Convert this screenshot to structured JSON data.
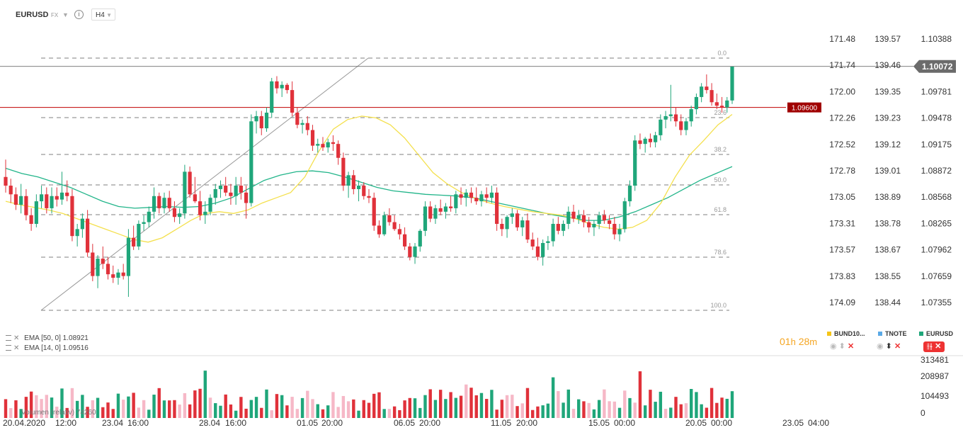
{
  "header": {
    "symbol": "EURUSD",
    "market": "FX",
    "timeframe": "H4"
  },
  "colors": {
    "up": "#1fa67a",
    "down": "#e0313a",
    "ema14": "#f4e04d",
    "ema50": "#22b58a",
    "current_price_bg": "#6b6b6b",
    "alert_line": "#c00000",
    "volume_light": "#f6b8c7"
  },
  "price_axis": {
    "col3": [
      "1.10388",
      "1.10072",
      "1.09781",
      "1.09478",
      "1.09175",
      "1.08872",
      "1.08568",
      "1.08265",
      "1.07962",
      "1.07659",
      "1.07355"
    ],
    "col2": [
      "139.57",
      "139.46",
      "139.35",
      "139.23",
      "139.12",
      "139.01",
      "138.89",
      "138.78",
      "138.67",
      "138.55",
      "138.44"
    ],
    "col1": [
      "171.48",
      "171.74",
      "172.00",
      "172.26",
      "172.52",
      "172.78",
      "173.05",
      "173.31",
      "173.57",
      "173.83",
      "174.09"
    ]
  },
  "current_price": "1.10072",
  "alert_price": "1.09600",
  "fib_levels": [
    "0.0",
    "23.6",
    "38.2",
    "50.0",
    "61.8",
    "78.6",
    "100.0"
  ],
  "indicators": [
    {
      "name": "EMA",
      "params": "[50, 0]",
      "value": "1.08921"
    },
    {
      "name": "EMA",
      "params": "[14, 0]",
      "value": "1.09516"
    }
  ],
  "timer": {
    "hours": "01",
    "h_unit": "h",
    "minutes": "28",
    "m_unit": "m"
  },
  "legend": [
    {
      "label": "BUND10...",
      "color": "#f5c518"
    },
    {
      "label": "TNOTE",
      "color": "#5aa9e6"
    },
    {
      "label": "EURUSD",
      "color": "#1fa67a"
    }
  ],
  "volume": {
    "label": "Volumen",
    "mode": "(relativ)",
    "value": "74260",
    "axis": [
      "313481",
      "208987",
      "104493",
      "0"
    ]
  },
  "time_axis": [
    "20.04.2020",
    "12:00",
    "23.04",
    "16:00",
    "28.04",
    "16:00",
    "01.05",
    "20:00",
    "06.05",
    "20:00",
    "11.05",
    "20:00",
    "15.05",
    "00:00",
    "20.05",
    "00:00",
    "23.05",
    "04:00"
  ],
  "chart_data": {
    "type": "candlestick",
    "symbol": "EURUSD",
    "timeframe": "H4",
    "y_axes": [
      "BUND10",
      "TNOTE",
      "EURUSD"
    ],
    "ylim": [
      1.07355,
      1.10388
    ],
    "series": [
      {
        "name": "EURUSD",
        "candles": [
          [
            1.088,
            1.09,
            1.0862,
            1.087
          ],
          [
            1.087,
            1.0878,
            1.085,
            1.086
          ],
          [
            1.086,
            1.0868,
            1.0842,
            1.0848
          ],
          [
            1.0848,
            1.0872,
            1.0838,
            1.0858
          ],
          [
            1.0858,
            1.0866,
            1.083,
            1.0836
          ],
          [
            1.0836,
            1.0844,
            1.0818,
            1.0826
          ],
          [
            1.0826,
            1.086,
            1.0822,
            1.0852
          ],
          [
            1.0852,
            1.087,
            1.0844,
            1.086
          ],
          [
            1.086,
            1.0868,
            1.0838,
            1.0844
          ],
          [
            1.0844,
            1.0868,
            1.0838,
            1.0858
          ],
          [
            1.0858,
            1.0868,
            1.0846,
            1.0854
          ],
          [
            1.0854,
            1.0886,
            1.0848,
            1.0862
          ],
          [
            1.0862,
            1.0876,
            1.0852,
            1.0858
          ],
          [
            1.0858,
            1.0866,
            1.0806,
            1.0812
          ],
          [
            1.0812,
            1.0826,
            1.08,
            1.082
          ],
          [
            1.082,
            1.0838,
            1.081,
            1.0832
          ],
          [
            1.0832,
            1.0842,
            1.0788,
            1.0793
          ],
          [
            1.0793,
            1.0803,
            1.076,
            1.0766
          ],
          [
            1.0766,
            1.079,
            1.0752,
            1.0786
          ],
          [
            1.0786,
            1.08,
            1.0774,
            1.078
          ],
          [
            1.078,
            1.0788,
            1.0762,
            1.0768
          ],
          [
            1.0768,
            1.0778,
            1.0758,
            1.0764
          ],
          [
            1.0764,
            1.0774,
            1.0756,
            1.077
          ],
          [
            1.077,
            1.078,
            1.0762,
            1.0766
          ],
          [
            1.0766,
            1.082,
            1.0742,
            1.081
          ],
          [
            1.081,
            1.0824,
            1.0796,
            1.08
          ],
          [
            1.08,
            1.083,
            1.0796,
            1.0826
          ],
          [
            1.0826,
            1.0836,
            1.0818,
            1.0828
          ],
          [
            1.0828,
            1.0846,
            1.0822,
            1.084
          ],
          [
            1.084,
            1.0868,
            1.0832,
            1.0858
          ],
          [
            1.0858,
            1.0862,
            1.0838,
            1.0844
          ],
          [
            1.0844,
            1.0862,
            1.0838,
            1.0856
          ],
          [
            1.0856,
            1.0864,
            1.084,
            1.0844
          ],
          [
            1.0844,
            1.0852,
            1.0828,
            1.0834
          ],
          [
            1.0834,
            1.0844,
            1.0826,
            1.0838
          ],
          [
            1.0838,
            1.0894,
            1.0832,
            1.0886
          ],
          [
            1.0886,
            1.0892,
            1.0856,
            1.086
          ],
          [
            1.086,
            1.088,
            1.085,
            1.0852
          ],
          [
            1.0852,
            1.0864,
            1.083,
            1.0836
          ],
          [
            1.0836,
            1.0852,
            1.0826,
            1.084
          ],
          [
            1.084,
            1.086,
            1.0836,
            1.0856
          ],
          [
            1.0856,
            1.0872,
            1.0848,
            1.0866
          ],
          [
            1.0866,
            1.0876,
            1.0856,
            1.087
          ],
          [
            1.087,
            1.088,
            1.0858,
            1.0862
          ],
          [
            1.0862,
            1.0872,
            1.0848,
            1.0858
          ],
          [
            1.0858,
            1.088,
            1.0848,
            1.087
          ],
          [
            1.087,
            1.088,
            1.0854,
            1.0862
          ],
          [
            1.0862,
            1.087,
            1.0832,
            1.085
          ],
          [
            1.085,
            1.0952,
            1.0846,
            1.0944
          ],
          [
            1.0944,
            1.0956,
            1.093,
            1.095
          ],
          [
            1.095,
            1.0956,
            1.0928,
            1.0936
          ],
          [
            1.0936,
            1.096,
            1.0932,
            1.0954
          ],
          [
            1.0954,
            1.0994,
            1.0948,
            1.099
          ],
          [
            1.099,
            1.0996,
            1.0976,
            1.0982
          ],
          [
            1.0982,
            1.099,
            1.0972,
            1.0986
          ],
          [
            1.0986,
            1.0988,
            1.0976,
            1.098
          ],
          [
            1.098,
            1.099,
            1.095,
            1.0954
          ],
          [
            1.0954,
            1.096,
            1.0936,
            1.094
          ],
          [
            1.094,
            1.0946,
            1.093,
            1.0942
          ],
          [
            1.0942,
            1.095,
            1.0928,
            1.0934
          ],
          [
            1.0934,
            1.094,
            1.091,
            1.0916
          ],
          [
            1.0916,
            1.0924,
            1.0908,
            1.0918
          ],
          [
            1.0918,
            1.0926,
            1.091,
            1.0914
          ],
          [
            1.0914,
            1.0924,
            1.0908,
            1.092
          ],
          [
            1.092,
            1.0928,
            1.091,
            1.0918
          ],
          [
            1.0918,
            1.0922,
            1.0894,
            1.0902
          ],
          [
            1.0902,
            1.0908,
            1.0864,
            1.087
          ],
          [
            1.087,
            1.0886,
            1.0856,
            1.0882
          ],
          [
            1.0882,
            1.0888,
            1.086,
            1.0866
          ],
          [
            1.0866,
            1.0876,
            1.0852,
            1.087
          ],
          [
            1.087,
            1.0874,
            1.0854,
            1.0858
          ],
          [
            1.0858,
            1.0866,
            1.085,
            1.0856
          ],
          [
            1.0856,
            1.0862,
            1.0818,
            1.0824
          ],
          [
            1.0824,
            1.083,
            1.081,
            1.0814
          ],
          [
            1.0814,
            1.084,
            1.0812,
            1.0836
          ],
          [
            1.0836,
            1.0844,
            1.0824,
            1.0828
          ],
          [
            1.0828,
            1.0836,
            1.0818,
            1.082
          ],
          [
            1.082,
            1.0826,
            1.0808,
            1.0814
          ],
          [
            1.0814,
            1.0822,
            1.0796,
            1.08
          ],
          [
            1.08,
            1.0804,
            1.0784,
            1.0788
          ],
          [
            1.0788,
            1.0804,
            1.078,
            1.08
          ],
          [
            1.08,
            1.082,
            1.0794,
            1.0818
          ],
          [
            1.0818,
            1.0852,
            1.0812,
            1.0846
          ],
          [
            1.0846,
            1.0852,
            1.0828,
            1.0832
          ],
          [
            1.0832,
            1.0848,
            1.0826,
            1.0844
          ],
          [
            1.0844,
            1.0854,
            1.0836,
            1.084
          ],
          [
            1.084,
            1.085,
            1.0832,
            1.0846
          ],
          [
            1.0846,
            1.0858,
            1.084,
            1.0844
          ],
          [
            1.0844,
            1.0864,
            1.0838,
            1.086
          ],
          [
            1.086,
            1.0868,
            1.0848,
            1.0856
          ],
          [
            1.0856,
            1.0866,
            1.0846,
            1.0862
          ],
          [
            1.0862,
            1.0868,
            1.085,
            1.0856
          ],
          [
            1.0856,
            1.0868,
            1.0848,
            1.0852
          ],
          [
            1.0852,
            1.0864,
            1.0846,
            1.086
          ],
          [
            1.086,
            1.0868,
            1.085,
            1.0856
          ],
          [
            1.0856,
            1.087,
            1.085,
            1.0862
          ],
          [
            1.0862,
            1.0868,
            1.0818,
            1.0826
          ],
          [
            1.0826,
            1.0832,
            1.0812,
            1.082
          ],
          [
            1.082,
            1.0836,
            1.081,
            1.0834
          ],
          [
            1.0834,
            1.0844,
            1.0826,
            1.0838
          ],
          [
            1.0838,
            1.0842,
            1.0818,
            1.0822
          ],
          [
            1.0822,
            1.0834,
            1.0812,
            1.083
          ],
          [
            1.083,
            1.0838,
            1.0804,
            1.0808
          ],
          [
            1.0808,
            1.0816,
            1.0796,
            1.08
          ],
          [
            1.08,
            1.081,
            1.0784,
            1.0788
          ],
          [
            1.0788,
            1.0808,
            1.0778,
            1.0804
          ],
          [
            1.0804,
            1.0812,
            1.0796,
            1.0806
          ],
          [
            1.0806,
            1.0832,
            1.08,
            1.0826
          ],
          [
            1.0826,
            1.0834,
            1.0814,
            1.0818
          ],
          [
            1.0818,
            1.083,
            1.0812,
            1.0826
          ],
          [
            1.0826,
            1.0846,
            1.082,
            1.084
          ],
          [
            1.084,
            1.0848,
            1.0828,
            1.0832
          ],
          [
            1.0832,
            1.0842,
            1.0826,
            1.0836
          ],
          [
            1.0836,
            1.0842,
            1.0822,
            1.0828
          ],
          [
            1.0828,
            1.0834,
            1.0816,
            1.0822
          ],
          [
            1.0822,
            1.083,
            1.0812,
            1.0826
          ],
          [
            1.0826,
            1.084,
            1.082,
            1.0836
          ],
          [
            1.0836,
            1.0842,
            1.0826,
            1.083
          ],
          [
            1.083,
            1.0836,
            1.082,
            1.0826
          ],
          [
            1.0826,
            1.0834,
            1.0808,
            1.0814
          ],
          [
            1.0814,
            1.0826,
            1.0806,
            1.082
          ],
          [
            1.082,
            1.0856,
            1.0816,
            1.0852
          ],
          [
            1.0852,
            1.0876,
            1.0846,
            1.087
          ],
          [
            1.087,
            1.0928,
            1.0864,
            1.0922
          ],
          [
            1.0922,
            1.093,
            1.0912,
            1.0918
          ],
          [
            1.0918,
            1.0926,
            1.0908,
            1.0924
          ],
          [
            1.0924,
            1.093,
            1.0914,
            1.092
          ],
          [
            1.092,
            1.0932,
            1.0914,
            1.0928
          ],
          [
            1.0928,
            1.0952,
            1.0922,
            1.0946
          ],
          [
            1.0946,
            1.0956,
            1.0936,
            1.095
          ],
          [
            1.095,
            1.0986,
            1.0944,
            1.0952
          ],
          [
            1.0952,
            1.096,
            1.0938,
            1.0944
          ],
          [
            1.0944,
            1.0952,
            1.0928,
            1.0934
          ],
          [
            1.0934,
            1.0948,
            1.0928,
            1.0944
          ],
          [
            1.0944,
            1.0962,
            1.0938,
            1.0958
          ],
          [
            1.0958,
            1.0976,
            1.0952,
            1.0972
          ],
          [
            1.0972,
            1.0988,
            1.0966,
            1.0984
          ],
          [
            1.0984,
            1.0998,
            1.0976,
            1.098
          ],
          [
            1.098,
            1.0988,
            1.0962,
            1.0966
          ],
          [
            1.0966,
            1.0976,
            1.0958,
            1.0962
          ],
          [
            1.0962,
            1.0972,
            1.0954,
            1.096
          ],
          [
            1.096,
            1.0972,
            1.0954,
            1.0968
          ],
          [
            1.0968,
            1.1007,
            1.0964,
            1.1007
          ]
        ]
      }
    ],
    "ema14": [
      1.0852,
      1.0848,
      1.0845,
      1.0842,
      1.0838,
      1.0832,
      1.0826,
      1.082,
      1.0814,
      1.0808,
      1.0805,
      1.081,
      1.082,
      1.083,
      1.0838,
      1.084,
      1.0838,
      1.0842,
      1.085,
      1.0856,
      1.0862,
      1.088,
      1.091,
      1.0935,
      1.0946,
      1.095,
      1.0948,
      1.094,
      1.0925,
      1.0905,
      1.0885,
      1.0872,
      1.0862,
      1.0855,
      1.085,
      1.0846,
      1.0843,
      1.084,
      1.0838,
      1.0836,
      1.0832,
      1.0826,
      1.0822,
      1.082,
      1.0822,
      1.083,
      1.085,
      1.088,
      1.0905,
      1.0922,
      1.094,
      1.0952
    ],
    "ema50": [
      1.089,
      1.0884,
      1.088,
      1.0874,
      1.0868,
      1.086,
      1.0852,
      1.0846,
      1.0844,
      1.0845,
      1.0846,
      1.0845,
      1.0846,
      1.085,
      1.0856,
      1.0866,
      1.0876,
      1.0882,
      1.0886,
      1.0887,
      1.0885,
      1.088,
      1.0874,
      1.0868,
      1.0864,
      1.0862,
      1.086,
      1.0859,
      1.0858,
      1.0856,
      1.0852,
      1.0848,
      1.0844,
      1.084,
      1.0836,
      1.0833,
      1.083,
      1.083,
      1.0834,
      1.084,
      1.0848,
      1.0856,
      1.0866,
      1.0876,
      1.0884,
      1.0892
    ],
    "volume_max": 313481
  }
}
